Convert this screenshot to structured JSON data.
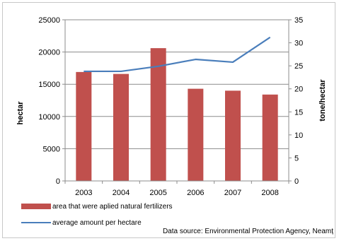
{
  "chart_data": {
    "type": "bar+line",
    "categories": [
      "2003",
      "2004",
      "2005",
      "2006",
      "2007",
      "2008"
    ],
    "series": [
      {
        "name": "area that were aplied natural fertilizers",
        "type": "bar",
        "axis": "left",
        "color": "#c0504d",
        "values": [
          16900,
          16600,
          20600,
          14300,
          14000,
          13400
        ]
      },
      {
        "name": "average amount per hectare",
        "type": "line",
        "axis": "right",
        "color": "#4a7ebb",
        "values": [
          23.8,
          23.8,
          24.9,
          26.4,
          25.8,
          31.2
        ]
      }
    ],
    "ylabel": "hectar",
    "y2label": "tone/hectar",
    "ylim": [
      0,
      25000
    ],
    "y2lim": [
      0,
      35
    ],
    "yticks": [
      "0",
      "5000",
      "10000",
      "15000",
      "20000",
      "25000"
    ],
    "y2ticks": [
      "0",
      "5",
      "10",
      "15",
      "20",
      "25",
      "30",
      "35"
    ],
    "grid": true,
    "legend": "bottom-left",
    "source": "Data source: Environmental Protection Agency, Neamț"
  }
}
